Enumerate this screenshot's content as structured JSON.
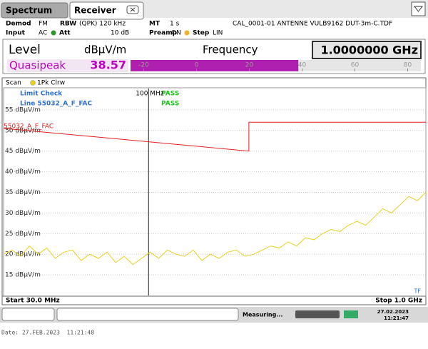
{
  "tabs": {
    "spectrum": "Spectrum",
    "receiver": "Receiver"
  },
  "info": {
    "demod_label": "Demod",
    "demod": "FM",
    "rbw_label": "RBW",
    "rbw": "(QPK) 120 kHz",
    "mt_label": "MT",
    "mt": "1 s",
    "transducer": "CAL_0001-01 ANTENNE VULB9162 DUT-3m-C.TDF",
    "input_label": "Input",
    "input": "AC",
    "att_label": "Att",
    "att": "10 dB",
    "preamp_label": "Preamp",
    "preamp": "ON",
    "step_label": "Step",
    "step": "LIN"
  },
  "level_display": {
    "level_label": "Level",
    "unit": "dBµV/m",
    "frequency_label": "Frequency",
    "frequency": "1.0000000 GHz",
    "detector": "Quasipeak",
    "reading": 38.57,
    "bar_lim": [
      -25,
      85
    ],
    "bar_ticks": [
      -20,
      0,
      20,
      40,
      60,
      80
    ]
  },
  "spectrum": {
    "header": "Scan",
    "trace_label": "1Pk Clrw",
    "limit_check": "Limit Check",
    "limit_line_label": "Line 55032_A_F_FAC",
    "result": "PASS",
    "line_result": "PASS",
    "marker": {
      "value": 100,
      "label": "100 MHz"
    },
    "limit_name": "55032_A_F_FAC",
    "start": "Start 30.0 MHz",
    "stop": "Stop 1.0 GHz",
    "tf": "TF",
    "xlim": [
      30,
      1000
    ],
    "xscale": "log",
    "ylim": [
      10,
      60
    ],
    "yticks": [
      {
        "value": 15,
        "label": "15 dBµV/m"
      },
      {
        "value": 20,
        "label": "20 dBµV/m"
      },
      {
        "value": 25,
        "label": "25 dBµV/m"
      },
      {
        "value": 30,
        "label": "30 dBµV/m"
      },
      {
        "value": 35,
        "label": "35 dBµV/m"
      },
      {
        "value": 40,
        "label": "40 dBµV/m"
      },
      {
        "value": 45,
        "label": "45 dBµV/m"
      },
      {
        "value": 50,
        "label": "50 dBµV/m"
      },
      {
        "value": 55,
        "label": "55 dBµV/m"
      }
    ],
    "limit_line": {
      "color": "#e02020",
      "x": [
        30,
        230,
        230,
        1000
      ],
      "values": [
        50.5,
        45,
        52,
        52
      ]
    },
    "trace": {
      "color": "#e8d020",
      "x": [
        30,
        32.2,
        34.6,
        37.2,
        40.0,
        42.9,
        46.1,
        49.5,
        53.2,
        57.1,
        61.4,
        65.9,
        70.8,
        76.1,
        81.7,
        87.8,
        94.3,
        101.3,
        108.8,
        116.9,
        125.5,
        134.9,
        144.9,
        155.6,
        167.2,
        179.6,
        192.9,
        207.2,
        222.6,
        239.1,
        256.9,
        275.9,
        296.4,
        318.4,
        342.0,
        367.4,
        394.7,
        424.0,
        455.4,
        489.2,
        525.5,
        564.5,
        606.4,
        651.4,
        699.8,
        751.7,
        807.5,
        867.4,
        931.8,
        1000
      ],
      "values": [
        20,
        21,
        19.5,
        22,
        20,
        21.5,
        19,
        20.5,
        21,
        18.5,
        20,
        19,
        20.5,
        18,
        19.5,
        17.5,
        19,
        20.5,
        19,
        21,
        20,
        19.5,
        21,
        18.5,
        20,
        19,
        20.5,
        21,
        19.5,
        20,
        21,
        22,
        21.5,
        23,
        22,
        24,
        23.5,
        25,
        26,
        25.5,
        27,
        28,
        27,
        29,
        31,
        30,
        32,
        34,
        33,
        35
      ]
    }
  },
  "status": {
    "state": "Measuring...",
    "date": "27.02.2023",
    "time": "11:21:47"
  },
  "footer": "Date: 27.FEB.2023  11:21:48"
}
